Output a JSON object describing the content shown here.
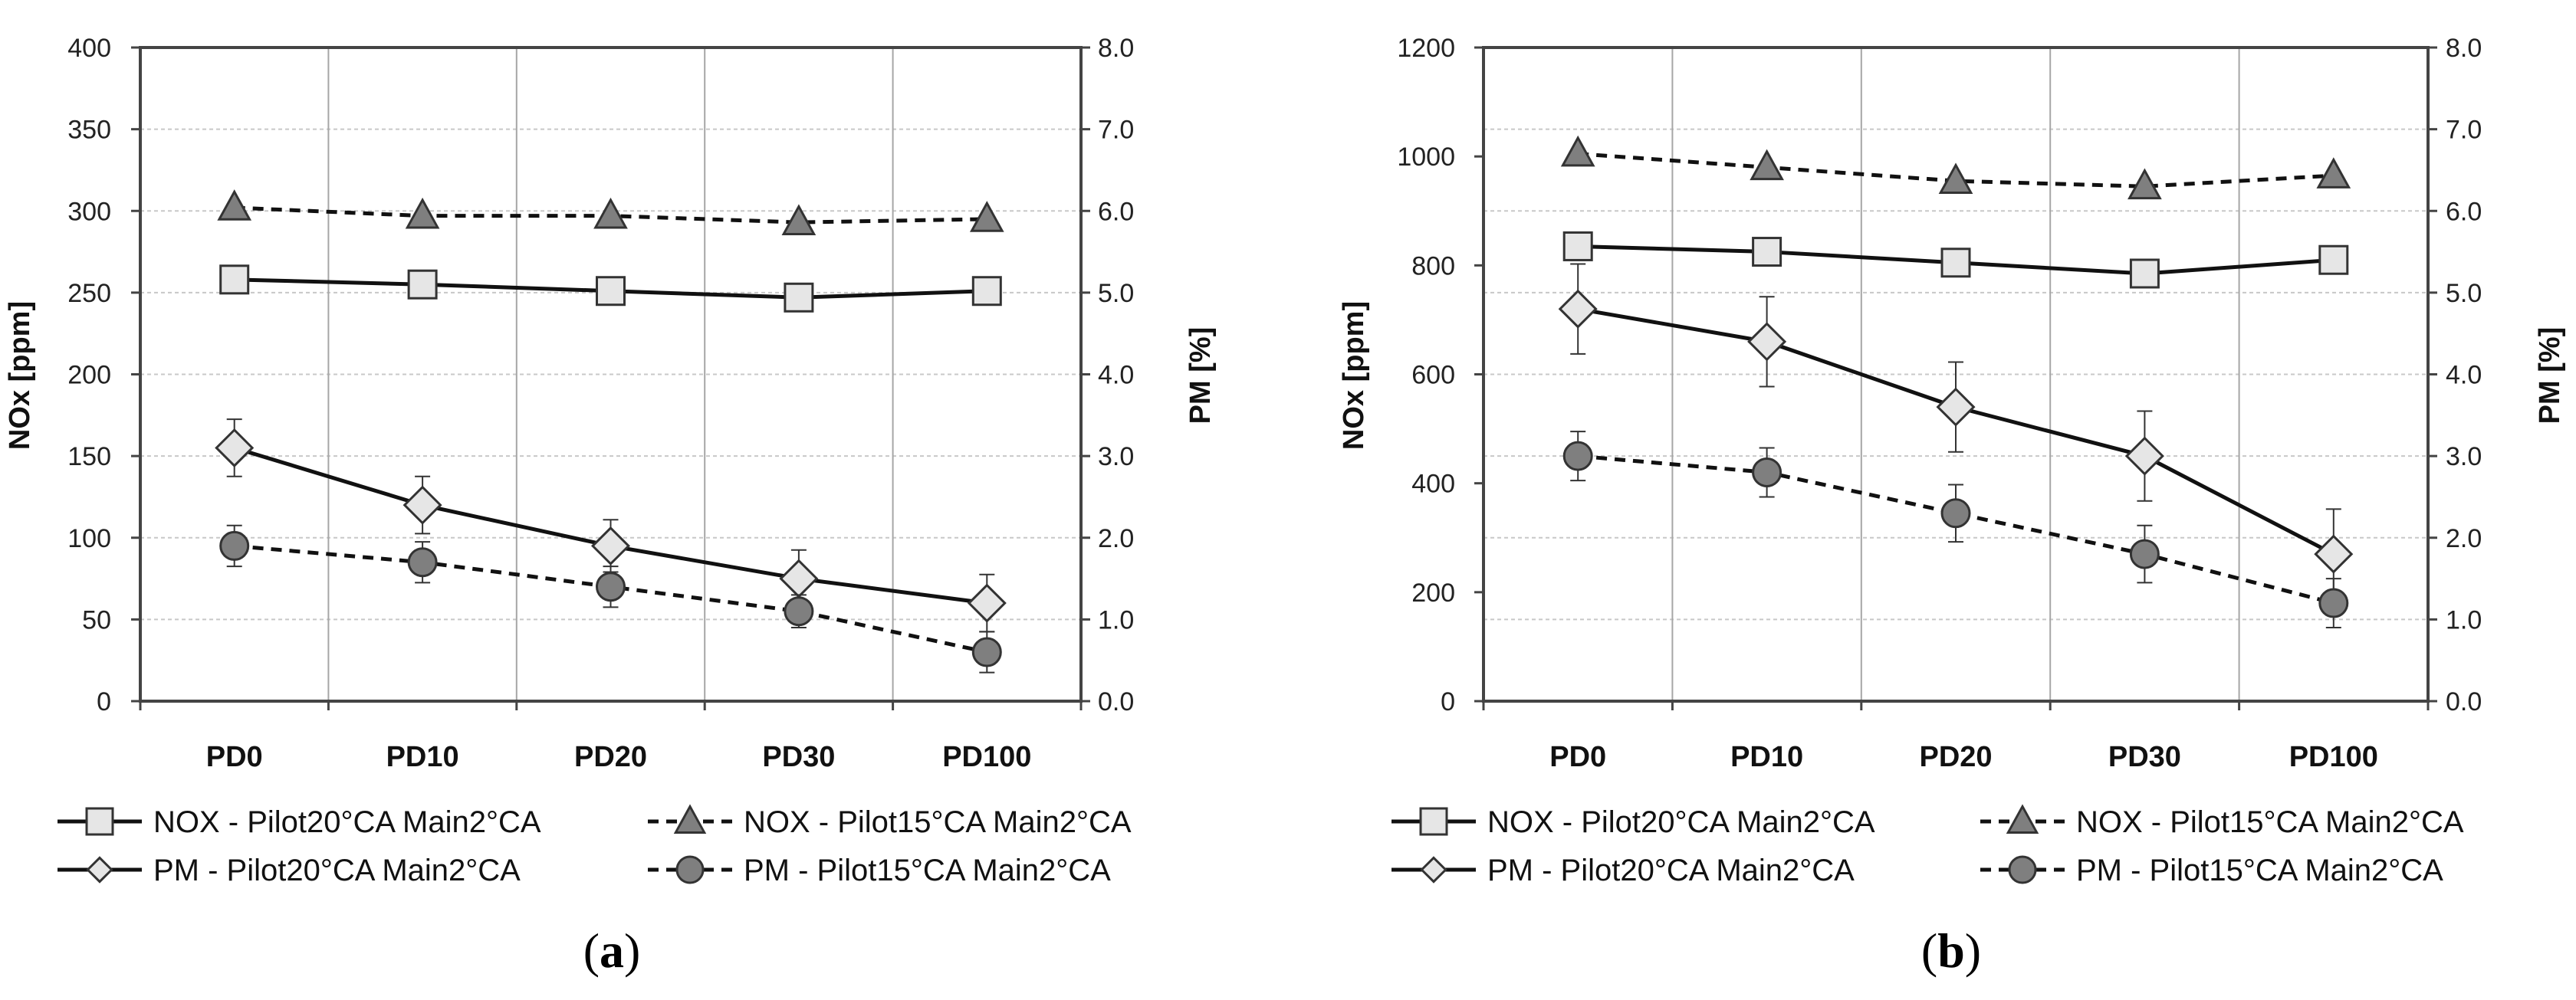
{
  "chart_data": [
    {
      "type": "line",
      "panel_label": "a",
      "categories": [
        "PD0",
        "PD10",
        "PD20",
        "PD30",
        "PD100"
      ],
      "ylabel": "NOx [ppm]",
      "ylim": [
        0,
        400
      ],
      "yticks": [
        "0",
        "50",
        "100",
        "150",
        "200",
        "250",
        "300",
        "350",
        "400"
      ],
      "y2label": "PM [%]",
      "y2lim": [
        0,
        8
      ],
      "y2ticks": [
        "0.0",
        "1.0",
        "2.0",
        "3.0",
        "4.0",
        "5.0",
        "6.0",
        "7.0",
        "8.0"
      ],
      "series": [
        {
          "name": "NOX - Pilot20°CA Main2°CA",
          "axis": "left",
          "marker": "square",
          "dash": false,
          "values": [
            258,
            255,
            251,
            247,
            251
          ]
        },
        {
          "name": "NOX - Pilot15°CA Main2°CA",
          "axis": "left",
          "marker": "triangle",
          "dash": true,
          "values": [
            302,
            297,
            297,
            293,
            295
          ]
        },
        {
          "name": "PM - Pilot20°CA Main2°CA",
          "axis": "right",
          "marker": "diamond",
          "dash": false,
          "values": [
            3.1,
            2.4,
            1.9,
            1.5,
            1.2
          ],
          "errors": [
            0.35,
            0.35,
            0.32,
            0.35,
            0.35
          ]
        },
        {
          "name": "PM - Pilot15°CA Main2°CA",
          "axis": "right",
          "marker": "circle",
          "dash": true,
          "values": [
            1.9,
            1.7,
            1.4,
            1.1,
            0.6
          ],
          "errors": [
            0.25,
            0.25,
            0.25,
            0.2,
            0.25
          ]
        }
      ]
    },
    {
      "type": "line",
      "panel_label": "b",
      "categories": [
        "PD0",
        "PD10",
        "PD20",
        "PD30",
        "PD100"
      ],
      "ylabel": "NOx [ppm]",
      "ylim": [
        0,
        1200
      ],
      "yticks": [
        "0",
        "200",
        "400",
        "600",
        "800",
        "1000",
        "1200"
      ],
      "y2label": "PM [%]",
      "y2lim": [
        0,
        8
      ],
      "y2ticks": [
        "0.0",
        "1.0",
        "2.0",
        "3.0",
        "4.0",
        "5.0",
        "6.0",
        "7.0",
        "8.0"
      ],
      "series": [
        {
          "name": "NOX - Pilot20°CA Main2°CA",
          "axis": "left",
          "marker": "square",
          "dash": false,
          "values": [
            835,
            825,
            805,
            785,
            810
          ]
        },
        {
          "name": "NOX - Pilot15°CA Main2°CA",
          "axis": "left",
          "marker": "triangle",
          "dash": true,
          "values": [
            1005,
            980,
            955,
            945,
            965
          ]
        },
        {
          "name": "PM - Pilot20°CA Main2°CA",
          "axis": "right",
          "marker": "diamond",
          "dash": false,
          "values": [
            4.8,
            4.4,
            3.6,
            3.0,
            1.8
          ],
          "errors": [
            0.55,
            0.55,
            0.55,
            0.55,
            0.55
          ]
        },
        {
          "name": "PM - Pilot15°CA Main2°CA",
          "axis": "right",
          "marker": "circle",
          "dash": true,
          "values": [
            3.0,
            2.8,
            2.3,
            1.8,
            1.2
          ],
          "errors": [
            0.3,
            0.3,
            0.35,
            0.35,
            0.3
          ]
        }
      ]
    }
  ]
}
